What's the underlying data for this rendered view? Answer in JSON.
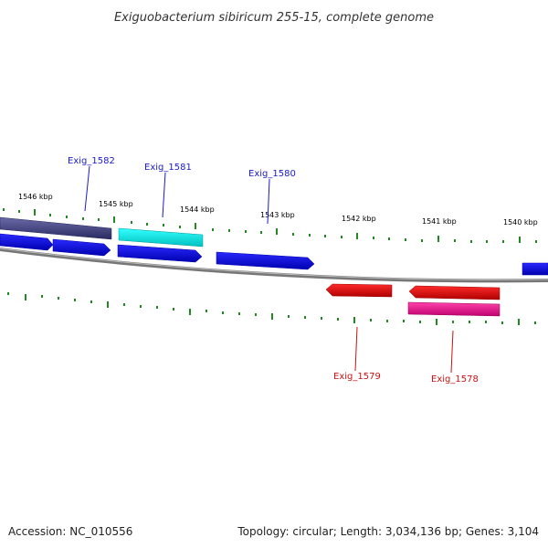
{
  "title": "Exiguobacterium sibiricum 255-15, complete genome",
  "footer": {
    "accession": "Accession: NC_010556",
    "stats": "Topology: circular; Length: 3,034,136 bp; Genes: 3,104"
  },
  "kbp_labels": [
    "1546 kbp",
    "1545 kbp",
    "1544 kbp",
    "1543 kbp",
    "1542 kbp",
    "1541 kbp",
    "1540 kbp"
  ],
  "gene_labels": {
    "exig_1582": "Exig_1582",
    "exig_1581": "Exig_1581",
    "exig_1580": "Exig_1580",
    "exig_1579": "Exig_1579",
    "exig_1578": "Exig_1578"
  },
  "colors": {
    "forward_cds": "#0000ee",
    "forward_highlight": "#00e5e5",
    "forward_dark": "#3d3d80",
    "reverse_cds": "#ee0000",
    "reverse_highlight": "#ee0088",
    "backbone": "#888888",
    "ticks": "#228822"
  }
}
